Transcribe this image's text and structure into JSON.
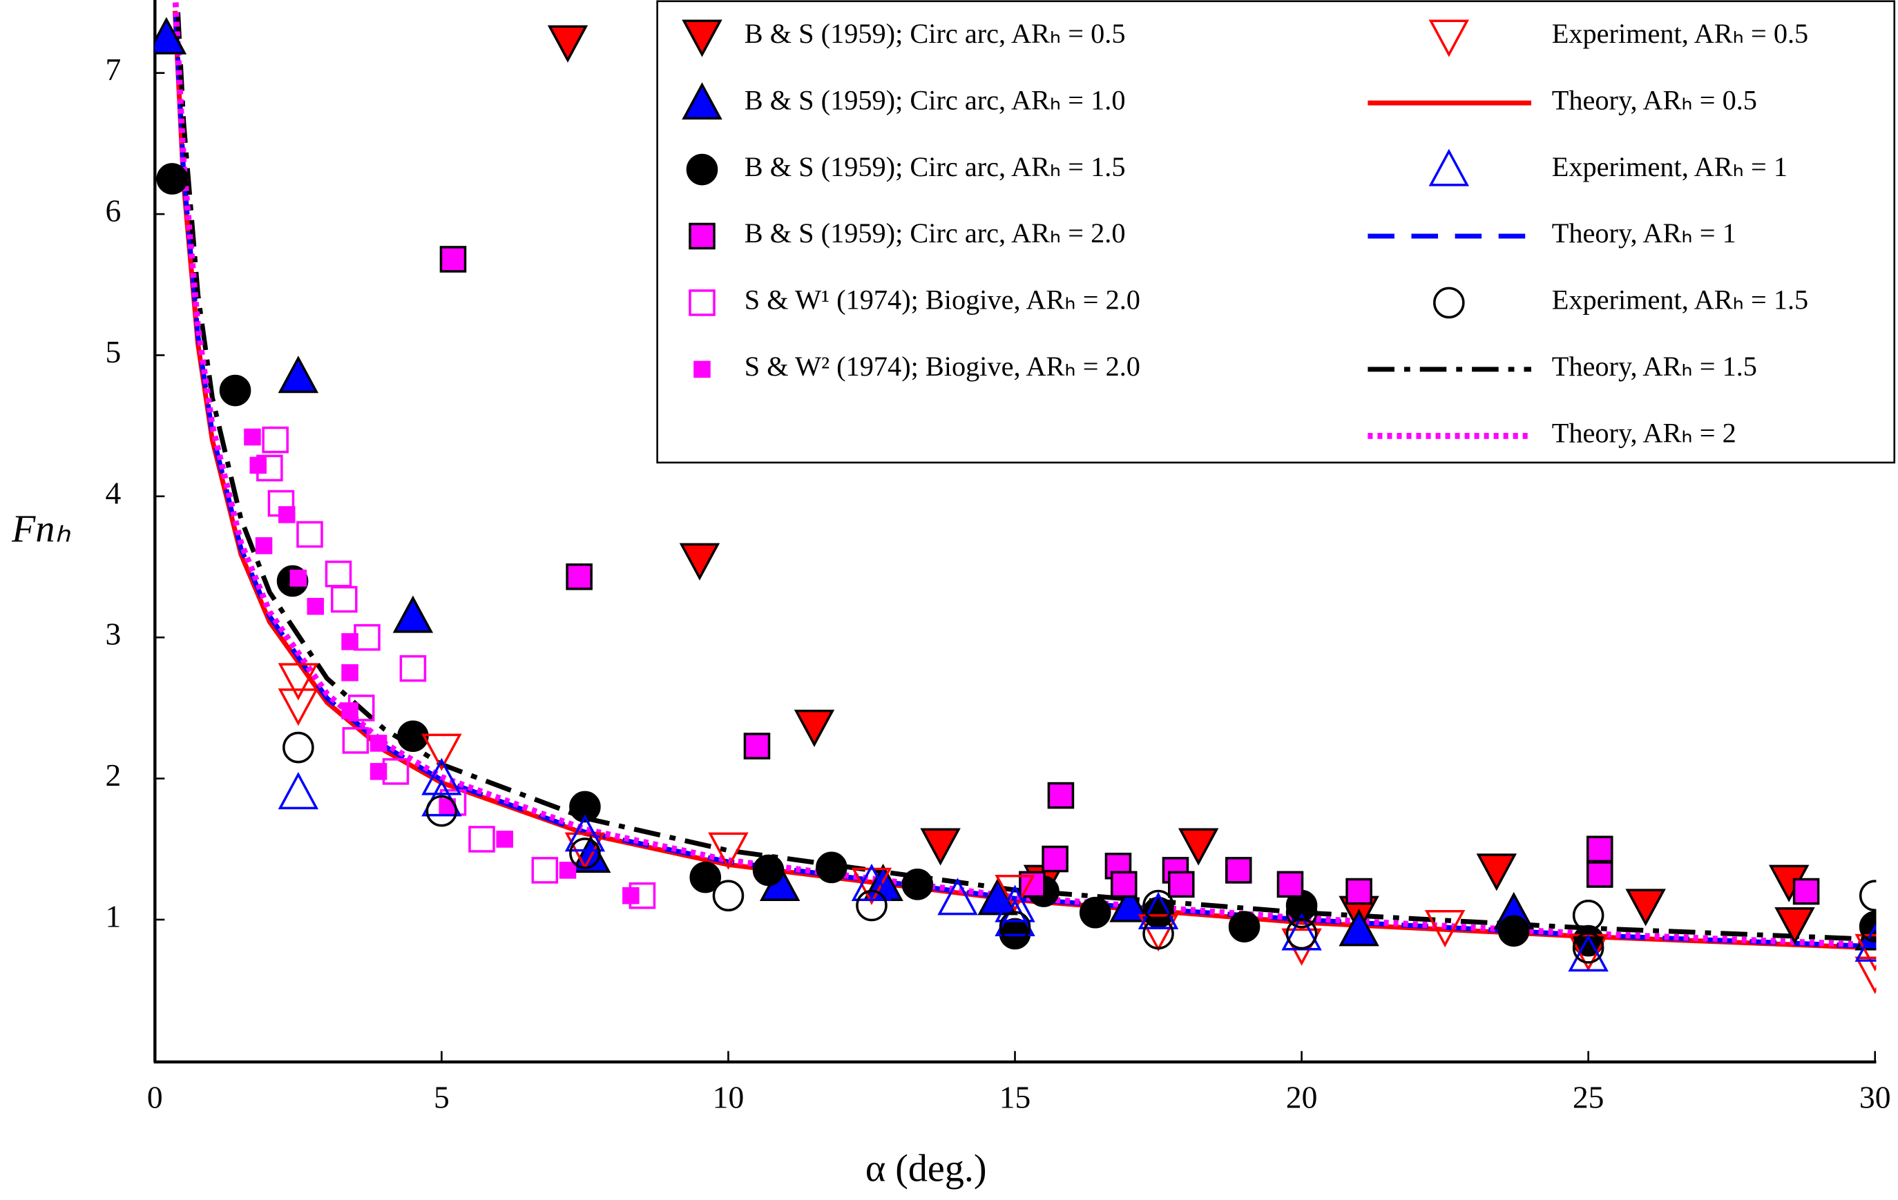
{
  "chart_data": {
    "type": "scatter",
    "x_label": "α (deg.)",
    "y_label": "Fnₕ",
    "xlim": [
      0,
      30
    ],
    "xticks": [
      0,
      5,
      10,
      15,
      20,
      25,
      30
    ],
    "ylim": [
      0,
      7.5
    ],
    "yticks": [
      1,
      2,
      3,
      4,
      5,
      6,
      7
    ],
    "grid": false,
    "legend": "upper right",
    "series": [
      {
        "name": "B & S (1959);  Circ arc, ARₕ = 0.5",
        "color": "#ff0000",
        "marker": "v",
        "filled": true,
        "x": [
          7.2,
          9.5,
          11.5,
          13.7,
          15.5,
          18.2,
          21,
          23.4,
          26,
          28.5,
          28.6
        ],
        "values": [
          7.22,
          3.55,
          2.37,
          1.53,
          1.27,
          1.53,
          1.05,
          1.35,
          1.1,
          1.27,
          0.97
        ]
      },
      {
        "name": "B & S (1959);  Circ arc, ARₕ = 1.0",
        "color": "#0000ff",
        "marker": "^",
        "filled": true,
        "x": [
          0.2,
          2.5,
          4.5,
          7.6,
          10.9,
          12.7,
          14.7,
          17,
          21,
          23.7,
          30
        ],
        "values": [
          7.25,
          4.85,
          3.15,
          1.45,
          1.25,
          1.25,
          1.15,
          1.1,
          0.93,
          1.05,
          0.9
        ]
      },
      {
        "name": "B & S (1959);  Circ arc, ARₕ = 1.5",
        "color": "#000000",
        "marker": "o",
        "filled": true,
        "x": [
          0.3,
          1.4,
          2.4,
          4.5,
          7.5,
          9.6,
          10.7,
          11.8,
          13.3,
          15,
          15.5,
          16.4,
          17.5,
          19,
          20,
          23.7,
          25,
          30
        ],
        "values": [
          6.25,
          4.75,
          3.4,
          2.3,
          1.8,
          1.3,
          1.35,
          1.37,
          1.25,
          0.9,
          1.2,
          1.05,
          1.05,
          0.95,
          1.1,
          0.92,
          0.85,
          0.95
        ]
      },
      {
        "name": "B & S (1959);  Circ arc, ARₕ = 2.0",
        "color": "#ff00ff",
        "marker": "s",
        "filled": true,
        "x": [
          5.2,
          7.4,
          10.5,
          15.8,
          15.7,
          16.8,
          16.9,
          17.8,
          17.9,
          18.9,
          19.8,
          21,
          25.2,
          25.2,
          28.8,
          15.3
        ],
        "values": [
          5.68,
          3.43,
          2.23,
          1.88,
          1.43,
          1.38,
          1.25,
          1.35,
          1.25,
          1.35,
          1.25,
          1.2,
          1.5,
          1.32,
          1.2,
          1.25
        ]
      },
      {
        "name": "S & W¹ (1974);  Biogive, ARₕ = 2.0",
        "color": "#ff00ff",
        "marker": "s",
        "filled": false,
        "x": [
          2.1,
          2.0,
          2.2,
          2.7,
          3.2,
          3.3,
          3.7,
          4.5,
          3.6,
          3.5,
          4.2,
          5.2,
          5.7,
          6.8,
          8.5
        ],
        "values": [
          4.4,
          4.2,
          3.95,
          3.73,
          3.45,
          3.27,
          3.0,
          2.78,
          2.5,
          2.27,
          2.05,
          1.83,
          1.57,
          1.35,
          1.17
        ]
      },
      {
        "name": "S & W² (1974);  Biogive, ARₕ = 2.0",
        "color": "#ff00ff",
        "marker": "small-square",
        "filled": true,
        "x": [
          1.7,
          1.8,
          1.9,
          2.3,
          2.5,
          2.8,
          3.4,
          3.4,
          3.4,
          3.9,
          3.9,
          5.1,
          6.1,
          7.2,
          8.3
        ],
        "values": [
          4.42,
          4.22,
          3.65,
          3.87,
          3.42,
          3.22,
          2.97,
          2.75,
          2.48,
          2.25,
          2.05,
          1.8,
          1.57,
          1.35,
          1.17
        ]
      },
      {
        "name": "Experiment, ARₕ = 0.5",
        "color": "#ff0000",
        "marker": "v",
        "filled": false,
        "x": [
          2.5,
          2.5,
          5,
          7.5,
          10,
          12.5,
          15,
          17.5,
          20,
          22.5,
          25,
          30,
          30
        ],
        "values": [
          2.7,
          2.52,
          2.2,
          1.5,
          1.5,
          1.25,
          1.2,
          0.92,
          0.82,
          0.95,
          0.78,
          0.62,
          0.78
        ]
      },
      {
        "name": "Theory, ARₕ = 0.5",
        "color": "#ff0000",
        "linestyle": "solid",
        "x": [
          0.35,
          0.5,
          0.75,
          1,
          1.5,
          2,
          3,
          4,
          5,
          7.5,
          10,
          15,
          20,
          25,
          30
        ],
        "values": [
          7.44,
          6.22,
          5.08,
          4.4,
          3.59,
          3.11,
          2.54,
          2.2,
          1.97,
          1.61,
          1.39,
          1.14,
          0.98,
          0.88,
          0.8
        ]
      },
      {
        "name": "Experiment, ARₕ = 1",
        "color": "#0000ff",
        "marker": "^",
        "filled": false,
        "x": [
          2.5,
          5,
          5,
          7.5,
          12.5,
          14,
          15,
          15,
          17.5,
          20,
          25,
          30
        ],
        "values": [
          1.9,
          2.0,
          1.85,
          1.6,
          1.25,
          1.15,
          1.1,
          1.0,
          1.05,
          0.9,
          0.75,
          0.82
        ]
      },
      {
        "name": "Theory, ARₕ = 1",
        "color": "#0000ff",
        "linestyle": "dashed",
        "x": [
          0.36,
          0.5,
          0.75,
          1,
          1.5,
          2,
          3,
          4,
          5,
          7.5,
          10,
          15,
          20,
          25,
          30
        ],
        "values": [
          7.42,
          6.29,
          5.14,
          4.45,
          3.63,
          3.15,
          2.57,
          2.23,
          1.99,
          1.62,
          1.41,
          1.15,
          1.0,
          0.89,
          0.81
        ]
      },
      {
        "name": "Experiment, ARₕ = 1.5",
        "color": "#000000",
        "marker": "o",
        "filled": false,
        "x": [
          2.5,
          5,
          7.5,
          10,
          12.5,
          15,
          17.5,
          17.5,
          20,
          20,
          25,
          25,
          30,
          30
        ],
        "values": [
          2.22,
          1.77,
          1.47,
          1.17,
          1.1,
          0.95,
          1.1,
          0.9,
          1.05,
          0.9,
          1.03,
          0.8,
          1.17,
          0.95
        ]
      },
      {
        "name": "Theory, ARₕ = 1.5",
        "color": "#000000",
        "linestyle": "dashdot",
        "x": [
          0.4,
          0.5,
          0.75,
          1,
          1.5,
          2,
          3,
          4,
          5,
          7.5,
          10,
          15,
          20,
          25,
          30
        ],
        "values": [
          7.43,
          6.65,
          5.43,
          4.7,
          3.84,
          3.32,
          2.71,
          2.35,
          2.1,
          1.72,
          1.49,
          1.21,
          1.05,
          0.94,
          0.86
        ]
      },
      {
        "name": "Theory, ARₕ = 2",
        "color": "#ff00ff",
        "linestyle": "dotted",
        "x": [
          0.36,
          0.5,
          0.75,
          1,
          1.5,
          2,
          3,
          4,
          5,
          7.5,
          10,
          15,
          20,
          25,
          30
        ],
        "values": [
          7.5,
          6.36,
          5.2,
          4.5,
          3.67,
          3.18,
          2.6,
          2.25,
          2.01,
          1.64,
          1.42,
          1.16,
          1.01,
          0.9,
          0.82
        ]
      }
    ]
  }
}
